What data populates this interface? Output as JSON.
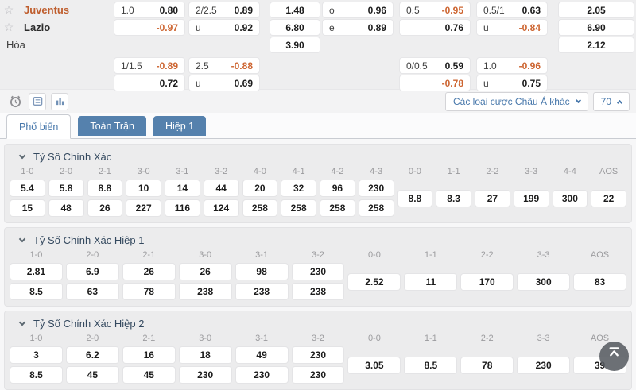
{
  "top_table": {
    "teams": [
      {
        "name": "Juventus",
        "starred": true
      },
      {
        "name": "Lazio",
        "starred": true
      },
      {
        "name": "Hòa",
        "starred": false
      }
    ],
    "rows": [
      {
        "cells": [
          {
            "col": "A",
            "label": "1.0",
            "value": "0.80"
          },
          {
            "col": "B",
            "label": "2/2.5",
            "value": "0.89"
          },
          {
            "col": "C",
            "value": "1.48"
          },
          {
            "col": "D",
            "label": "o",
            "value": "0.96"
          },
          {
            "col": "E",
            "label": "0.5",
            "value": "-0.95"
          },
          {
            "col": "F",
            "label": "0.5/1",
            "value": "0.63"
          },
          {
            "col": "G",
            "value": "2.05"
          }
        ]
      },
      {
        "cells": [
          {
            "col": "A",
            "value": "-0.97"
          },
          {
            "col": "B",
            "label": "u",
            "value": "0.92"
          },
          {
            "col": "C",
            "value": "6.80"
          },
          {
            "col": "D",
            "label": "e",
            "value": "0.89"
          },
          {
            "col": "E",
            "value": "0.76"
          },
          {
            "col": "F",
            "label": "u",
            "value": "-0.84"
          },
          {
            "col": "G",
            "value": "6.90"
          }
        ]
      },
      {
        "cells": [
          {
            "col": "C",
            "value": "3.90"
          },
          {
            "col": "G",
            "value": "2.12"
          }
        ]
      },
      {
        "cells": [
          {
            "col": "A",
            "label": "1/1.5",
            "value": "-0.89"
          },
          {
            "col": "B",
            "label": "2.5",
            "value": "-0.88"
          },
          {
            "col": "E",
            "label": "0/0.5",
            "value": "0.59"
          },
          {
            "col": "F",
            "label": "1.0",
            "value": "-0.96"
          }
        ]
      },
      {
        "cells": [
          {
            "col": "A",
            "value": "0.72"
          },
          {
            "col": "B",
            "label": "u",
            "value": "0.69"
          },
          {
            "col": "E",
            "value": "-0.78"
          },
          {
            "col": "F",
            "label": "u",
            "value": "0.75"
          }
        ]
      }
    ]
  },
  "toolbar": {
    "icons": [
      "alarm-icon",
      "odds-board-icon",
      "bar-chart-icon"
    ],
    "dropdown_label": "Các loại cược Châu Á khác",
    "market_count": "70"
  },
  "tabs": [
    {
      "label": "Phổ biến",
      "active": true
    },
    {
      "label": "Toàn Trận",
      "active": false
    },
    {
      "label": "Hiệp 1",
      "active": false
    }
  ],
  "sections": [
    {
      "title": "Tỷ Số Chính Xác",
      "score": {
        "headers": [
          "1-0",
          "2-0",
          "2-1",
          "3-0",
          "3-1",
          "3-2",
          "4-0",
          "4-1",
          "4-2",
          "4-3"
        ],
        "row1": [
          "5.4",
          "5.8",
          "8.8",
          "10",
          "14",
          "44",
          "20",
          "32",
          "96",
          "230"
        ],
        "row2": [
          "15",
          "48",
          "26",
          "227",
          "116",
          "124",
          "258",
          "258",
          "258",
          "258"
        ]
      },
      "draw": {
        "headers": [
          "0-0",
          "1-1",
          "2-2",
          "3-3",
          "4-4",
          "AOS"
        ],
        "values": [
          "8.8",
          "8.3",
          "27",
          "199",
          "300",
          "22"
        ]
      }
    },
    {
      "title": "Tỷ Số Chính Xác Hiệp 1",
      "score": {
        "headers": [
          "1-0",
          "2-0",
          "2-1",
          "3-0",
          "3-1",
          "3-2"
        ],
        "row1": [
          "2.81",
          "6.9",
          "26",
          "26",
          "98",
          "230"
        ],
        "row2": [
          "8.5",
          "63",
          "78",
          "238",
          "238",
          "238"
        ]
      },
      "draw": {
        "headers": [
          "0-0",
          "1-1",
          "2-2",
          "3-3",
          "AOS"
        ],
        "values": [
          "2.52",
          "11",
          "170",
          "300",
          "83"
        ]
      }
    },
    {
      "title": "Tỷ Số Chính Xác Hiệp 2",
      "score": {
        "headers": [
          "1-0",
          "2-0",
          "2-1",
          "3-0",
          "3-1",
          "3-2"
        ],
        "row1": [
          "3",
          "6.2",
          "16",
          "18",
          "49",
          "230"
        ],
        "row2": [
          "8.5",
          "45",
          "45",
          "230",
          "230",
          "230"
        ]
      },
      "draw": {
        "headers": [
          "0-0",
          "1-1",
          "2-2",
          "3-3",
          "AOS"
        ],
        "values": [
          "3.05",
          "8.5",
          "78",
          "230",
          "39"
        ]
      }
    }
  ],
  "colors": {
    "negative_odds": "#cd6531",
    "home_team": "#bf5e2e",
    "tab_blue": "#5581ad",
    "link_blue": "#4878ab"
  }
}
